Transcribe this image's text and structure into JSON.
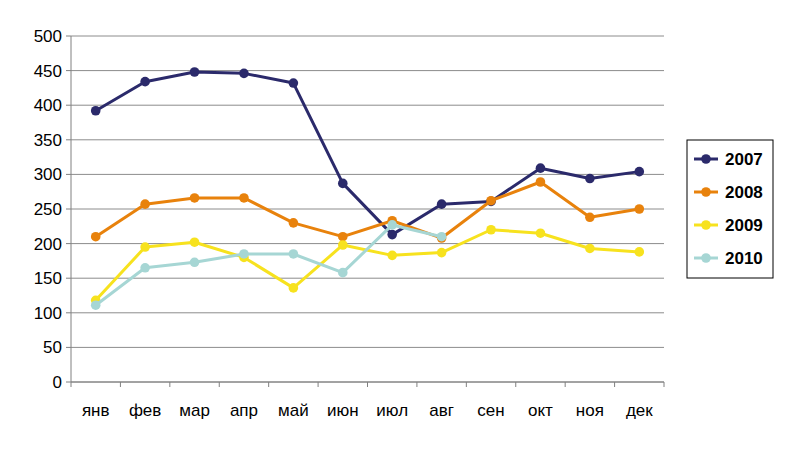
{
  "chart_data": {
    "type": "line",
    "categories": [
      "янв",
      "фев",
      "мар",
      "апр",
      "май",
      "июн",
      "июл",
      "авг",
      "сен",
      "окт",
      "ноя",
      "дек"
    ],
    "series": [
      {
        "name": "2007",
        "color": "#2b2a6b",
        "values": [
          392,
          434,
          448,
          446,
          432,
          287,
          213,
          257,
          261,
          309,
          294,
          304
        ]
      },
      {
        "name": "2008",
        "color": "#e8820c",
        "values": [
          210,
          257,
          266,
          266,
          230,
          210,
          233,
          208,
          262,
          289,
          238,
          250
        ]
      },
      {
        "name": "2009",
        "color": "#f7e21e",
        "values": [
          118,
          195,
          202,
          180,
          136,
          198,
          183,
          187,
          220,
          215,
          193,
          188
        ]
      },
      {
        "name": "2010",
        "color": "#a6d6d4",
        "values": [
          111,
          165,
          173,
          185,
          185,
          158,
          227,
          210,
          null,
          null,
          null,
          null
        ]
      }
    ],
    "ylim": [
      0,
      500
    ],
    "yticks": [
      0,
      50,
      100,
      150,
      200,
      250,
      300,
      350,
      400,
      450,
      500
    ],
    "grid": true,
    "legend": "right",
    "marker": "circle"
  }
}
